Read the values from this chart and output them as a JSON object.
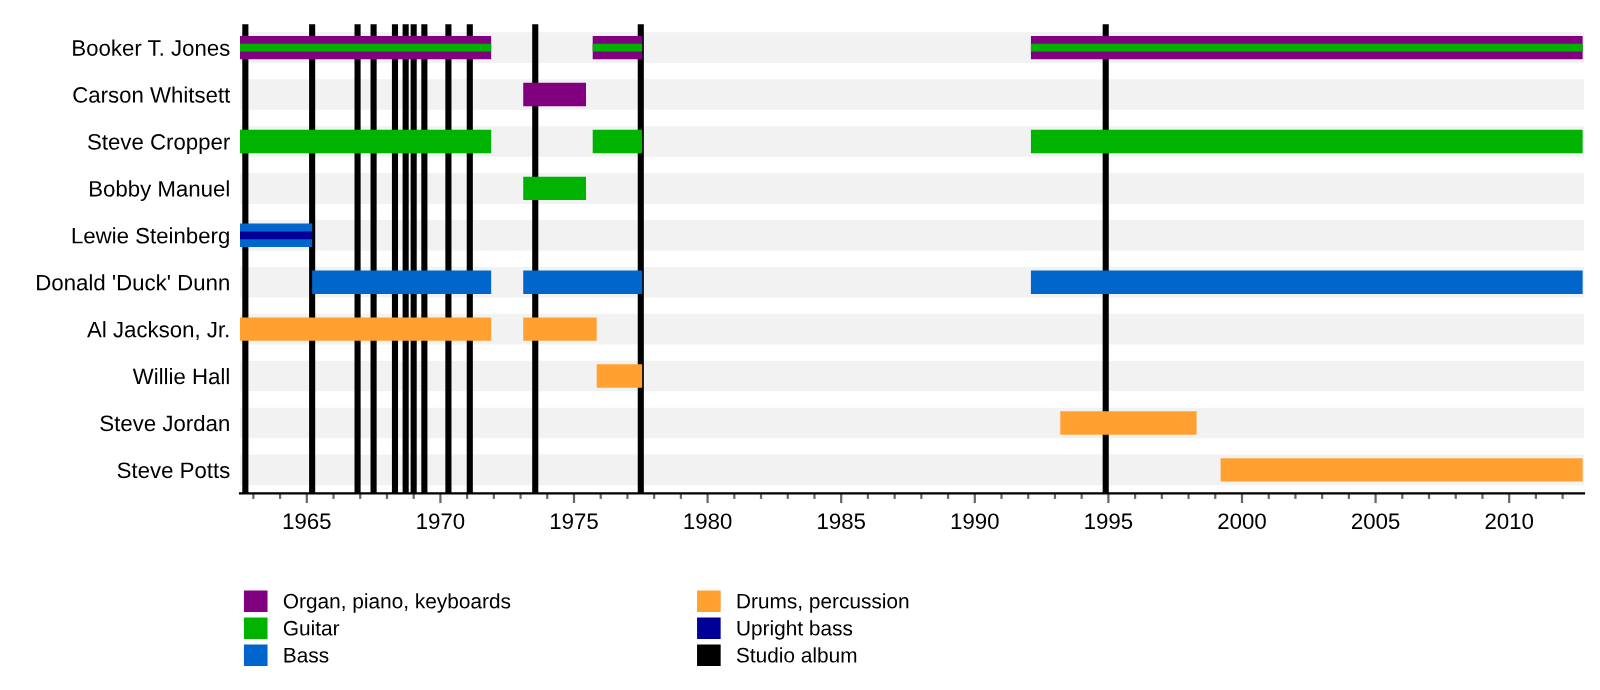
{
  "chart_data": {
    "type": "bar",
    "orientation": "horizontal",
    "categories": [
      "Booker T. Jones",
      "Carson Whitsett",
      "Steve Cropper",
      "Bobby Manuel",
      "Lewie Steinberg",
      "Donald 'Duck' Dunn",
      "Al Jackson, Jr.",
      "Willie Hall",
      "Steve Jordan",
      "Steve Potts"
    ],
    "series": [
      {
        "name": "Organ, piano, keyboards",
        "color": "#800080",
        "base": [
          1962.5,
          1973.1,
          null,
          null,
          null,
          null,
          null,
          null,
          null,
          null
        ],
        "values": [
          9.4,
          2.35,
          null,
          null,
          null,
          null,
          null,
          null,
          null,
          null
        ]
      },
      {
        "color": "#800080",
        "base": [
          1975.7,
          null,
          null,
          null,
          null,
          null,
          null,
          null,
          null,
          null
        ],
        "values": [
          1.85,
          null,
          null,
          null,
          null,
          null,
          null,
          null,
          null,
          null
        ]
      },
      {
        "color": "#800080",
        "base": [
          1992.1,
          null,
          null,
          null,
          null,
          null,
          null,
          null,
          null,
          null
        ],
        "values": [
          20.65,
          null,
          null,
          null,
          null,
          null,
          null,
          null,
          null,
          null
        ]
      },
      {
        "name": "Guitar",
        "color": "#00b300",
        "base": [
          1962.5,
          null,
          1962.5,
          1973.1,
          null,
          null,
          null,
          null,
          null,
          null
        ],
        "values": [
          9.4,
          null,
          9.4,
          2.35,
          null,
          null,
          null,
          null,
          null,
          null
        ]
      },
      {
        "color": "#00b300",
        "base": [
          1975.7,
          null,
          1975.7,
          null,
          null,
          null,
          null,
          null,
          null,
          null
        ],
        "values": [
          1.85,
          null,
          1.85,
          null,
          null,
          null,
          null,
          null,
          null,
          null
        ]
      },
      {
        "color": "#00b300",
        "base": [
          1992.1,
          null,
          1992.1,
          null,
          null,
          null,
          null,
          null,
          null,
          null
        ],
        "values": [
          20.65,
          null,
          20.65,
          null,
          null,
          null,
          null,
          null,
          null,
          null
        ]
      },
      {
        "name": "Bass",
        "color": "#0066cc",
        "base": [
          null,
          null,
          null,
          null,
          1962.5,
          1965.2,
          null,
          null,
          null,
          null
        ],
        "values": [
          null,
          null,
          null,
          null,
          2.7,
          6.7,
          null,
          null,
          null,
          null
        ]
      },
      {
        "color": "#0066cc",
        "base": [
          null,
          null,
          null,
          null,
          null,
          1973.1,
          null,
          null,
          null,
          null
        ],
        "values": [
          null,
          null,
          null,
          null,
          null,
          4.45,
          null,
          null,
          null,
          null
        ]
      },
      {
        "color": "#0066cc",
        "base": [
          null,
          null,
          null,
          null,
          null,
          1992.1,
          null,
          null,
          null,
          null
        ],
        "values": [
          null,
          null,
          null,
          null,
          null,
          20.65,
          null,
          null,
          null,
          null
        ]
      },
      {
        "name": "Drums, percussion",
        "color": "#ffa030",
        "base": [
          null,
          null,
          null,
          null,
          null,
          null,
          1962.5,
          1975.85,
          1993.2,
          1999.2
        ],
        "values": [
          null,
          null,
          null,
          null,
          null,
          null,
          9.4,
          1.7,
          5.1,
          13.55
        ]
      },
      {
        "color": "#ffa030",
        "base": [
          null,
          null,
          null,
          null,
          null,
          null,
          1973.1,
          null,
          null,
          null
        ],
        "values": [
          null,
          null,
          null,
          null,
          null,
          null,
          2.75,
          null,
          null,
          null
        ]
      },
      {
        "name": "Upright bass",
        "color": "#000099",
        "base": [
          null,
          null,
          null,
          null,
          1962.5,
          null,
          null,
          null,
          null,
          null
        ],
        "values": [
          null,
          null,
          null,
          null,
          2.7,
          null,
          null,
          null,
          null,
          null
        ]
      }
    ],
    "ref_lines": [
      {
        "axis": "x",
        "value": 1962.7,
        "label": "Studio album",
        "color": "#000000"
      },
      {
        "axis": "x",
        "value": 1965.2,
        "color": "#000000"
      },
      {
        "axis": "x",
        "value": 1966.9,
        "color": "#000000"
      },
      {
        "axis": "x",
        "value": 1967.5,
        "color": "#000000"
      },
      {
        "axis": "x",
        "value": 1968.3,
        "color": "#000000"
      },
      {
        "axis": "x",
        "value": 1968.7,
        "color": "#000000"
      },
      {
        "axis": "x",
        "value": 1969.0,
        "color": "#000000"
      },
      {
        "axis": "x",
        "value": 1969.4,
        "color": "#000000"
      },
      {
        "axis": "x",
        "value": 1970.3,
        "color": "#000000"
      },
      {
        "axis": "x",
        "value": 1971.1,
        "color": "#000000"
      },
      {
        "axis": "x",
        "value": 1973.55,
        "color": "#000000"
      },
      {
        "axis": "x",
        "value": 1977.5,
        "color": "#000000"
      },
      {
        "axis": "x",
        "value": 1994.9,
        "color": "#000000"
      }
    ],
    "xlim": [
      1962.5,
      2012.8
    ],
    "xticks": [
      {
        "value": 1963,
        "label": null
      },
      {
        "value": 1964,
        "label": null
      },
      1965,
      {
        "value": 1966,
        "label": null
      },
      {
        "value": 1967,
        "label": null
      },
      {
        "value": 1968,
        "label": null
      },
      {
        "value": 1969,
        "label": null
      },
      1970,
      {
        "value": 1971,
        "label": null
      },
      {
        "value": 1972,
        "label": null
      },
      {
        "value": 1973,
        "label": null
      },
      {
        "value": 1974,
        "label": null
      },
      1975,
      {
        "value": 1976,
        "label": null
      },
      {
        "value": 1977,
        "label": null
      },
      {
        "value": 1978,
        "label": null
      },
      {
        "value": 1979,
        "label": null
      },
      1980,
      {
        "value": 1981,
        "label": null
      },
      {
        "value": 1982,
        "label": null
      },
      {
        "value": 1983,
        "label": null
      },
      {
        "value": 1984,
        "label": null
      },
      1985,
      {
        "value": 1986,
        "label": null
      },
      {
        "value": 1987,
        "label": null
      },
      {
        "value": 1988,
        "label": null
      },
      {
        "value": 1989,
        "label": null
      },
      1990,
      {
        "value": 1991,
        "label": null
      },
      {
        "value": 1992,
        "label": null
      },
      {
        "value": 1993,
        "label": null
      },
      {
        "value": 1994,
        "label": null
      },
      1995,
      {
        "value": 1996,
        "label": null
      },
      {
        "value": 1997,
        "label": null
      },
      {
        "value": 1998,
        "label": null
      },
      {
        "value": 1999,
        "label": null
      },
      2000,
      {
        "value": 2001,
        "label": null
      },
      {
        "value": 2002,
        "label": null
      },
      {
        "value": 2003,
        "label": null
      },
      {
        "value": 2004,
        "label": null
      },
      2005,
      {
        "value": 2006,
        "label": null
      },
      {
        "value": 2007,
        "label": null
      },
      {
        "value": 2008,
        "label": null
      },
      {
        "value": 2009,
        "label": null
      },
      2010,
      {
        "value": 2011,
        "label": null
      },
      {
        "value": 2012,
        "label": null
      }
    ],
    "grid": "y",
    "legend": "bottom"
  }
}
